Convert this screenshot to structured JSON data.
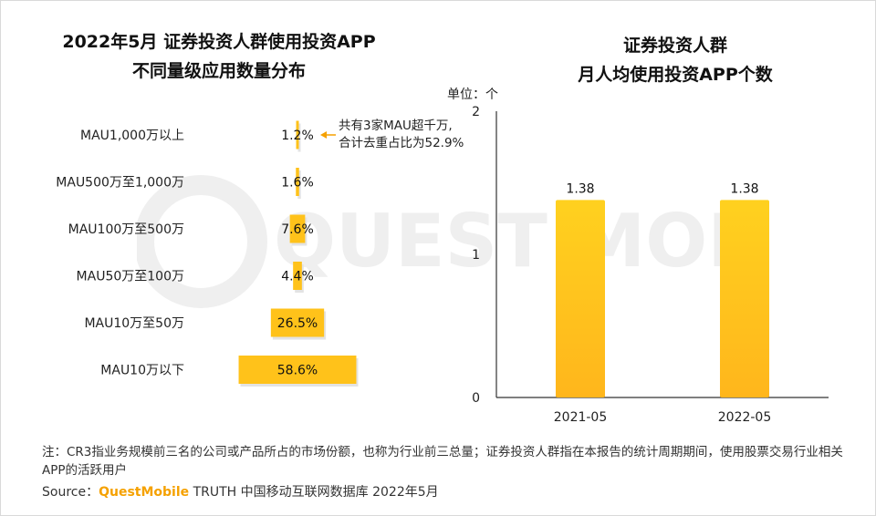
{
  "left_chart": {
    "title_line1": "2022年5月 证券投资人群使用投资APP",
    "title_line2": "不同量级应用数量分布"
  },
  "right_chart": {
    "title_line1": "证券投资人群",
    "title_line2": "月人均使用投资APP个数",
    "unit_label": "单位：个"
  },
  "annotation": {
    "line1": "共有3家MAU超千万,",
    "line2": "合计去重占比为52.9%"
  },
  "watermark": {
    "text": "QUEST MOBILE"
  },
  "footer": {
    "note": "注：CR3指业务规模前三名的公司或产品所占的市场份额，也称为行业前三总量；证券投资人群指在本报告的统计周期期间，使用股票交易行业相关APP的活跃用户",
    "source_prefix": "Source：",
    "source_brand": "QuestMobile",
    "source_rest": " TRUTH 中国移动互联网数据库 2022年5月"
  },
  "colors": {
    "bar": "#ffc21a",
    "bar_gradient_start": "#ffd11f",
    "bar_gradient_end": "#ffb81c",
    "axis": "#333333",
    "watermark": "#eeeeee",
    "brand": "#f5a100"
  },
  "chart_data": [
    {
      "type": "bar",
      "orientation": "horizontal",
      "layout": "funnel",
      "title": "2022年5月 证券投资人群使用投资APP 不同量级应用数量分布",
      "categories": [
        "MAU1,000万以上",
        "MAU500万至1,000万",
        "MAU100万至500万",
        "MAU50万至100万",
        "MAU10万至50万",
        "MAU10万以下"
      ],
      "values": [
        1.2,
        1.6,
        7.6,
        4.4,
        26.5,
        58.6
      ],
      "value_labels": [
        "1.2%",
        "1.6%",
        "7.6%",
        "4.4%",
        "26.5%",
        "58.6%"
      ],
      "unit": "%"
    },
    {
      "type": "bar",
      "orientation": "vertical",
      "title": "证券投资人群 月人均使用投资APP个数",
      "categories": [
        "2021-05",
        "2022-05"
      ],
      "values": [
        1.38,
        1.38
      ],
      "value_labels": [
        "1.38",
        "1.38"
      ],
      "ylim": [
        0,
        2
      ],
      "yticks": [
        "0",
        "1",
        "2"
      ],
      "ylabel": "单位：个",
      "grid": false
    }
  ]
}
